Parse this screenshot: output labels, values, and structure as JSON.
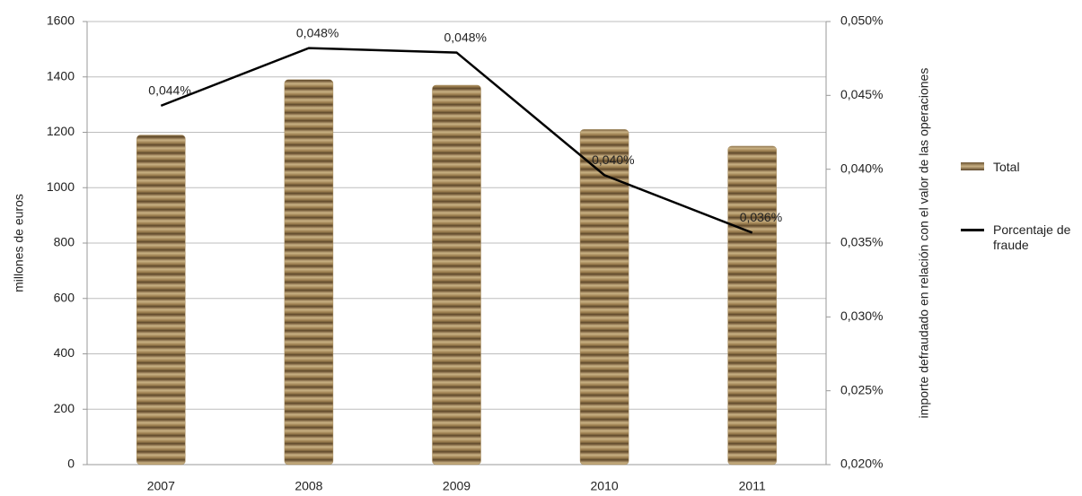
{
  "chart_data": {
    "type": "bar-line",
    "categories": [
      "2007",
      "2008",
      "2009",
      "2010",
      "2011"
    ],
    "ylabel": "millones de euros",
    "y2label": "importe defraudado en relación con el valor de las operaciones",
    "ylim": [
      0,
      1600
    ],
    "yticks": [
      0,
      200,
      400,
      600,
      800,
      1000,
      1200,
      1400,
      1600
    ],
    "y2lim": [
      0.02,
      0.05
    ],
    "y2ticks": [
      {
        "value": 0.02,
        "label": "0,020%"
      },
      {
        "value": 0.025,
        "label": "0,025%"
      },
      {
        "value": 0.03,
        "label": "0,030%"
      },
      {
        "value": 0.035,
        "label": "0,035%"
      },
      {
        "value": 0.04,
        "label": "0,040%"
      },
      {
        "value": 0.045,
        "label": "0,045%"
      },
      {
        "value": 0.05,
        "label": "0,050%"
      }
    ],
    "grid": true,
    "series": [
      {
        "name": "Total",
        "type": "bar",
        "color": "#a4895a",
        "values": [
          1190,
          1390,
          1370,
          1210,
          1150
        ]
      },
      {
        "name": "Porcentaje de fraude",
        "type": "line",
        "axis": "y2",
        "color": "#000000",
        "values": [
          0.0443,
          0.0482,
          0.0479,
          0.0396,
          0.0357
        ],
        "value_labels": [
          "0,044%",
          "0,048%",
          "0,048%",
          "0,040%",
          "0,036%"
        ]
      }
    ]
  }
}
